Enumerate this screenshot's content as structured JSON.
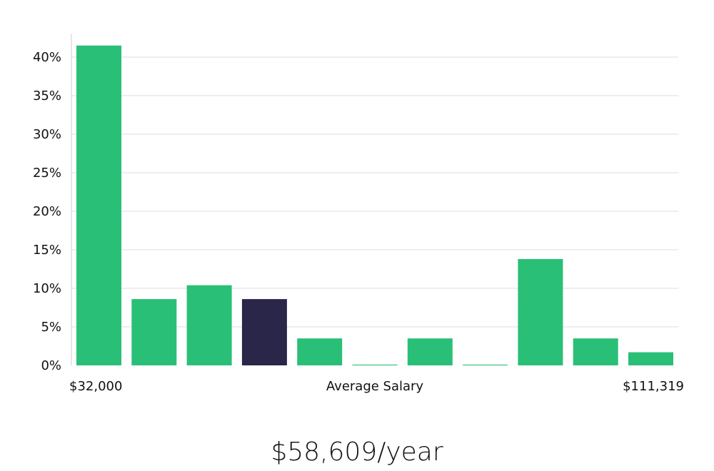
{
  "chart_data": {
    "type": "bar",
    "categories": [
      "1",
      "2",
      "3",
      "4",
      "5",
      "6",
      "7",
      "8",
      "9",
      "10",
      "11"
    ],
    "values": [
      41.5,
      8.6,
      10.4,
      8.6,
      3.5,
      0.1,
      3.5,
      0.1,
      13.8,
      3.5,
      1.7
    ],
    "highlight_index": 3,
    "ylim": [
      0,
      43
    ],
    "yticks": [
      0,
      5,
      10,
      15,
      20,
      25,
      30,
      35,
      40
    ],
    "ytick_suffix": "%",
    "grid": true,
    "x_min_label": "$32,000",
    "x_max_label": "$111,319",
    "xlabel": "Average Salary",
    "colors": {
      "bar": "#2abf77",
      "highlight": "#29264a",
      "grid": "#dddddd",
      "axis": "#cccccc"
    }
  },
  "summary": {
    "salary_text": "$58,609/year"
  }
}
